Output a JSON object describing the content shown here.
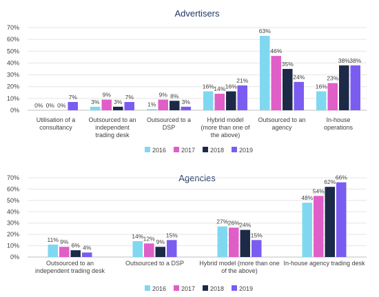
{
  "chart_data": [
    {
      "type": "bar",
      "title": "Advertisers",
      "categories": [
        [
          "Utilisation of a",
          "consultancy"
        ],
        [
          "Outsourced to an",
          "independent",
          "trading desk"
        ],
        [
          "Outsourced to a",
          "DSP"
        ],
        [
          "Hybrid model",
          "(more than one of",
          "the above)"
        ],
        [
          "Outsourced to an",
          "agency"
        ],
        [
          "In-house",
          "operations"
        ]
      ],
      "series": [
        {
          "name": "2016",
          "values": [
            0,
            3,
            1,
            16,
            63,
            16
          ]
        },
        {
          "name": "2017",
          "values": [
            0,
            9,
            9,
            14,
            46,
            23
          ]
        },
        {
          "name": "2018",
          "values": [
            0,
            3,
            8,
            16,
            35,
            38
          ]
        },
        {
          "name": "2019",
          "values": [
            7,
            7,
            3,
            21,
            24,
            38
          ]
        }
      ],
      "ylim": [
        0,
        70
      ],
      "yticks": [
        "0%",
        "10%",
        "20%",
        "30%",
        "40%",
        "50%",
        "60%",
        "70%"
      ],
      "grid": true,
      "legend": "bottom"
    },
    {
      "type": "bar",
      "title": "Agencies",
      "categories": [
        [
          "Outsourced to an",
          "independent trading desk"
        ],
        [
          "Outsourced to a DSP"
        ],
        [
          "Hybrid model (more than one",
          "of the above)"
        ],
        [
          "In-house agency trading desk"
        ]
      ],
      "series": [
        {
          "name": "2016",
          "values": [
            11,
            14,
            27,
            48
          ]
        },
        {
          "name": "2017",
          "values": [
            9,
            12,
            26,
            54
          ]
        },
        {
          "name": "2018",
          "values": [
            6,
            9,
            24,
            62
          ]
        },
        {
          "name": "2019",
          "values": [
            4,
            15,
            15,
            66
          ]
        }
      ],
      "ylim": [
        0,
        70
      ],
      "yticks": [
        "0%",
        "10%",
        "20%",
        "30%",
        "40%",
        "50%",
        "60%",
        "70%"
      ],
      "grid": true,
      "legend": "bottom"
    }
  ],
  "colors": [
    "#7fd8f0",
    "#e05ec7",
    "#1c2a48",
    "#7b5cf0"
  ]
}
